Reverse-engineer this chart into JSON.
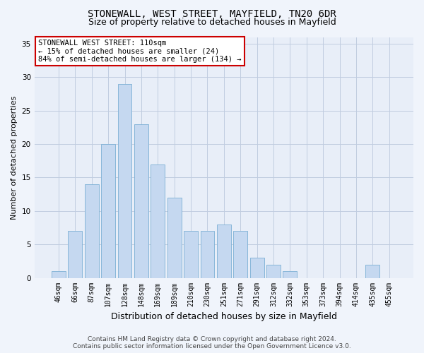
{
  "title_line1": "STONEWALL, WEST STREET, MAYFIELD, TN20 6DR",
  "title_line2": "Size of property relative to detached houses in Mayfield",
  "xlabel": "Distribution of detached houses by size in Mayfield",
  "ylabel": "Number of detached properties",
  "categories": [
    "46sqm",
    "66sqm",
    "87sqm",
    "107sqm",
    "128sqm",
    "148sqm",
    "169sqm",
    "189sqm",
    "210sqm",
    "230sqm",
    "251sqm",
    "271sqm",
    "291sqm",
    "312sqm",
    "332sqm",
    "353sqm",
    "373sqm",
    "394sqm",
    "414sqm",
    "435sqm",
    "455sqm"
  ],
  "values": [
    1,
    7,
    14,
    20,
    29,
    23,
    17,
    12,
    7,
    7,
    8,
    7,
    3,
    2,
    1,
    0,
    0,
    0,
    0,
    2,
    0
  ],
  "bar_color": "#c5d8f0",
  "bar_edge_color": "#7bafd4",
  "ylim": [
    0,
    36
  ],
  "yticks": [
    0,
    5,
    10,
    15,
    20,
    25,
    30,
    35
  ],
  "annotation_line1": "STONEWALL WEST STREET: 110sqm",
  "annotation_line2": "← 15% of detached houses are smaller (24)",
  "annotation_line3": "84% of semi-detached houses are larger (134) →",
  "annotation_box_facecolor": "#ffffff",
  "annotation_box_edgecolor": "#cc0000",
  "footer_line1": "Contains HM Land Registry data © Crown copyright and database right 2024.",
  "footer_line2": "Contains public sector information licensed under the Open Government Licence v3.0.",
  "background_color": "#f0f4fb",
  "plot_bg_color": "#e8eef8",
  "grid_color": "#c0cce0",
  "title_fontsize": 10,
  "subtitle_fontsize": 9,
  "xlabel_fontsize": 9,
  "ylabel_fontsize": 8,
  "tick_fontsize": 7,
  "annot_fontsize": 7.5,
  "footer_fontsize": 6.5
}
